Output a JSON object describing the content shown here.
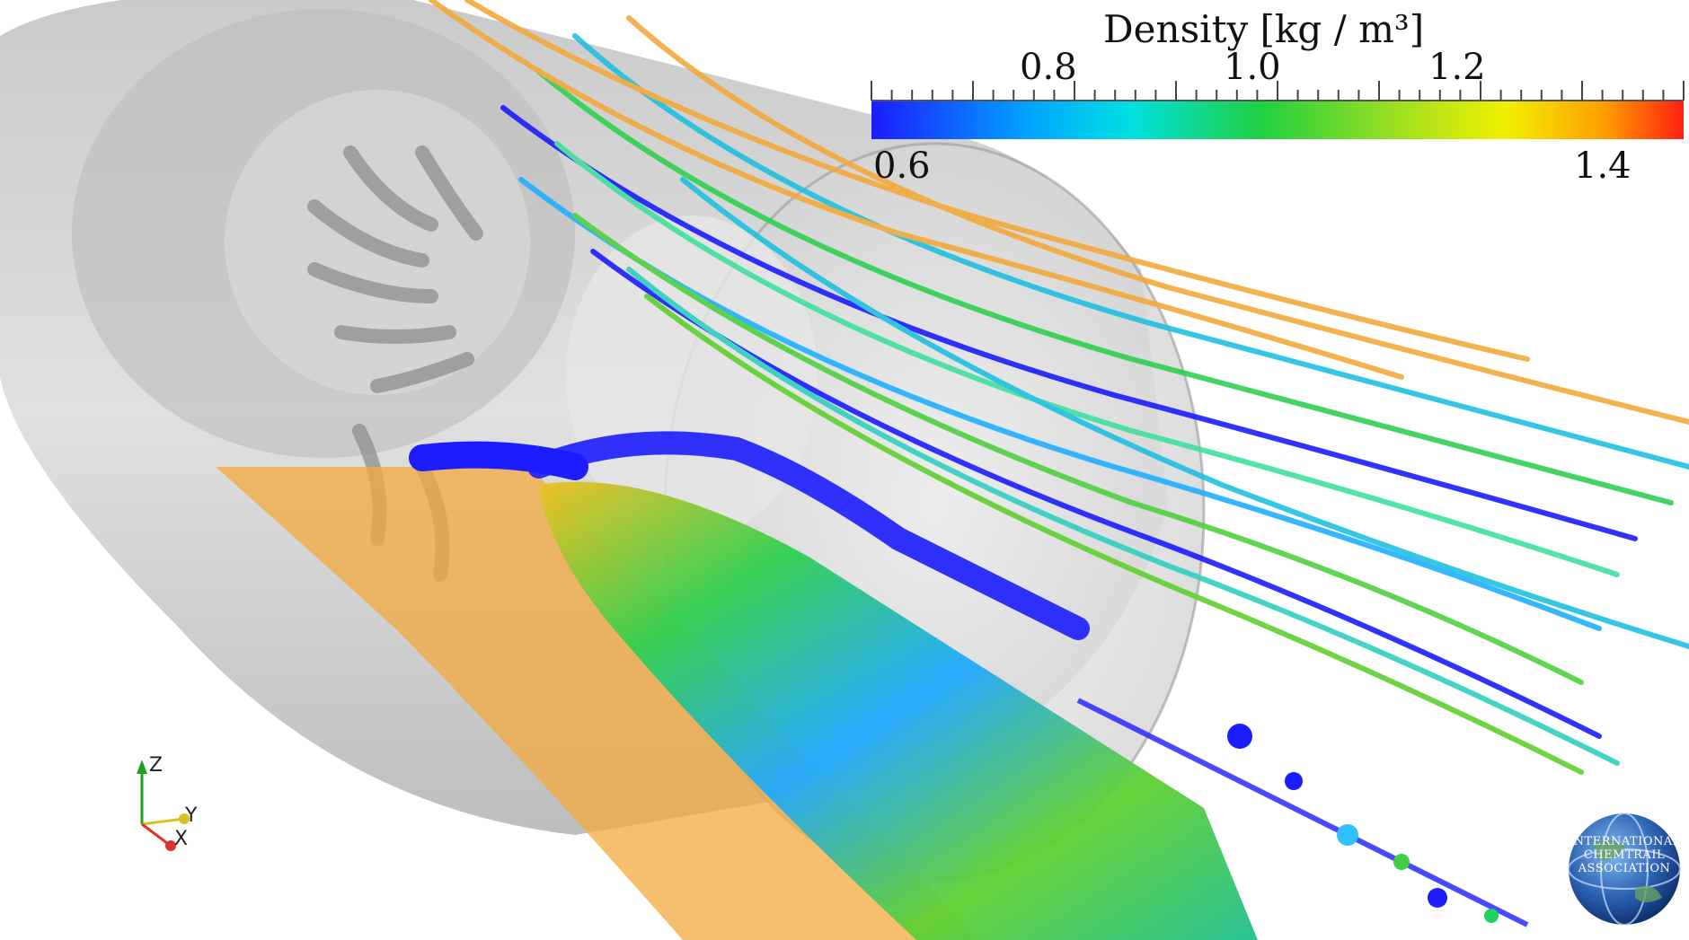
{
  "colorbar": {
    "title": "Density [kg / m³]",
    "min": 0.6,
    "max": 1.4,
    "upper_labels": [
      "0.8",
      "1.0",
      "1.2"
    ],
    "lower_labels": [
      "0.6",
      "1.4"
    ],
    "colors": [
      "#1c1cff",
      "#00a8ff",
      "#00e0e0",
      "#20d040",
      "#a0e020",
      "#f0f000",
      "#ffa000",
      "#ff2010"
    ]
  },
  "axes_triad": {
    "z": "Z",
    "y": "Y",
    "x": "X"
  },
  "logo": {
    "text": "International Chemtrail Association"
  },
  "scene": {
    "object": "combustor-chamber",
    "shell_color": "#c8c8c8",
    "flame_color": "#f3a93c"
  }
}
